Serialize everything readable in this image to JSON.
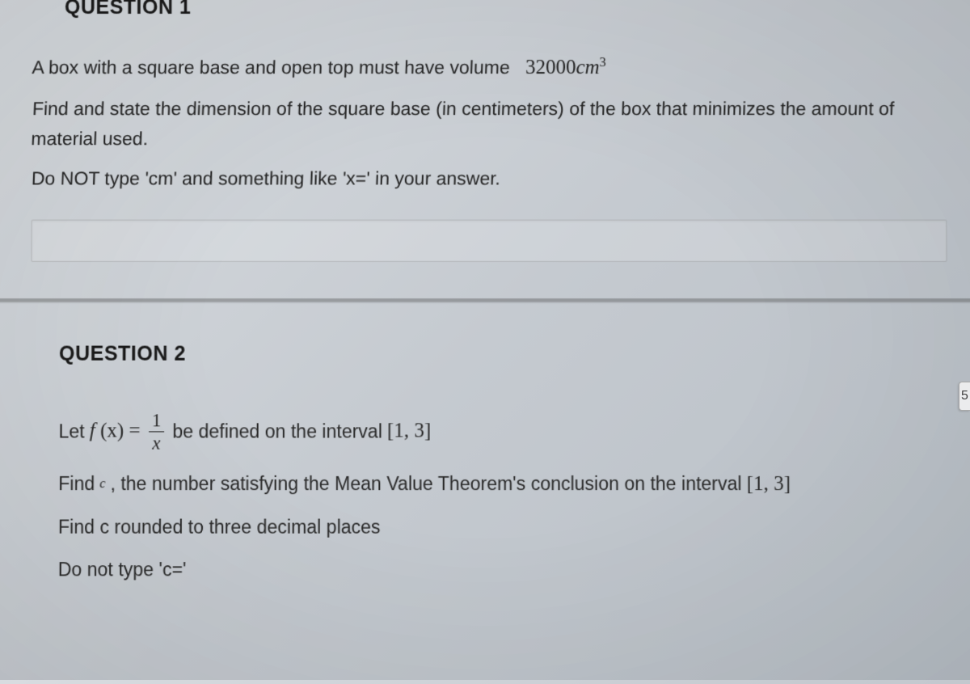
{
  "q1": {
    "header": "QUESTION 1",
    "line1_a": "A box with a square base and open top must have volume",
    "volume_value": "32000",
    "volume_unit": "cm",
    "volume_exp": "3",
    "line2": "Find and state the dimension of the square base (in centimeters) of the box that minimizes the amount of material used.",
    "line3": "Do NOT type 'cm' and something like 'x=' in your answer."
  },
  "q2": {
    "header": "QUESTION 2",
    "let_text": "Let",
    "fx_expr_a": "f",
    "fx_expr_b": "(x) =",
    "frac_num": "1",
    "frac_den": "x",
    "defined_text": "be defined on the interval",
    "interval": "[1, 3]",
    "find_text": "Find",
    "c_sub": "c",
    "mvt_text": ", the number satisfying the Mean Value Theorem's conclusion on the interval",
    "interval2": "[1, 3]",
    "rounded_text": "Find c rounded to three decimal places",
    "dont_type": "Do not type 'c='"
  },
  "side_badge": "5"
}
